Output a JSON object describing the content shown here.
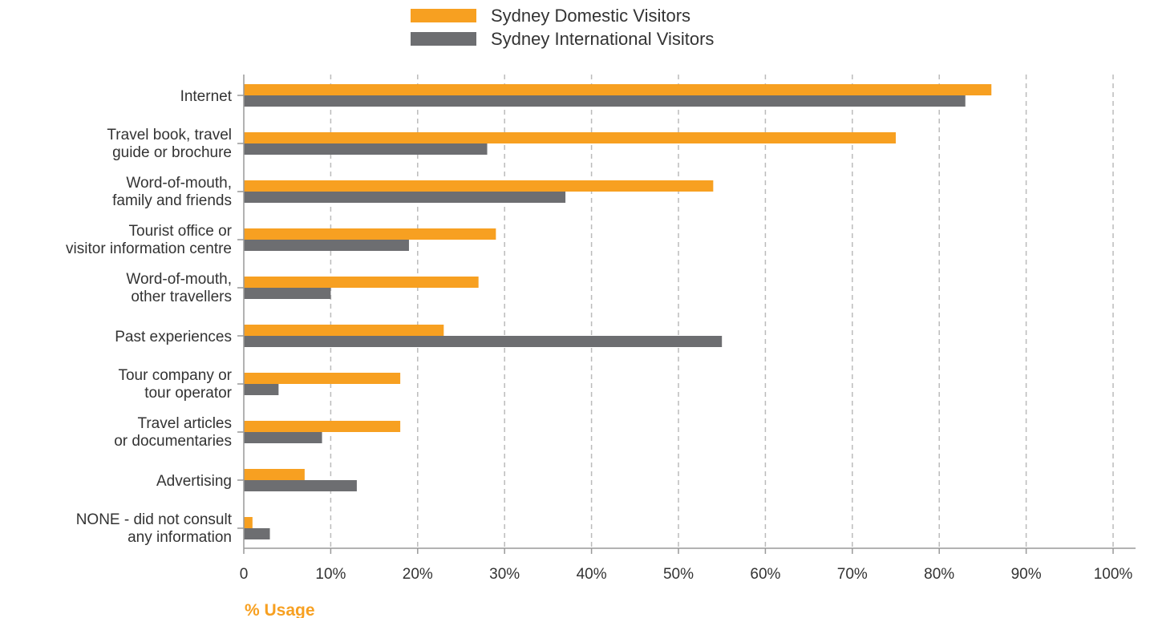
{
  "chart_data": {
    "type": "bar",
    "orientation": "horizontal",
    "title": "",
    "xlabel": "% Usage",
    "ylabel": "",
    "xlim": [
      0,
      100
    ],
    "x_ticks": [
      "0",
      "10%",
      "20%",
      "30%",
      "40%",
      "50%",
      "60%",
      "70%",
      "80%",
      "90%",
      "100%"
    ],
    "grid": "vertical dashed",
    "legend_position": "top-center",
    "categories": [
      [
        "Internet"
      ],
      [
        "Travel book, travel",
        "guide or brochure"
      ],
      [
        "Word-of-mouth,",
        "family and friends"
      ],
      [
        "Tourist office or",
        "visitor information centre"
      ],
      [
        "Word-of-mouth,",
        "other travellers"
      ],
      [
        "Past experiences"
      ],
      [
        "Tour company or",
        "tour operator"
      ],
      [
        "Travel articles",
        "or documentaries"
      ],
      [
        "Advertising"
      ],
      [
        "NONE - did not consult",
        "any information"
      ]
    ],
    "series": [
      {
        "name": "Sydney Domestic Visitors",
        "color": "#F7A021",
        "values": [
          86,
          75,
          54,
          29,
          27,
          23,
          18,
          18,
          7,
          1
        ]
      },
      {
        "name": "Sydney International Visitors",
        "color": "#6D6E71",
        "values": [
          83,
          28,
          37,
          19,
          10,
          55,
          4,
          9,
          13,
          3
        ]
      }
    ],
    "colors": {
      "axis": "#999999",
      "grid": "#BBBBBB",
      "xlabel": "#F7A021"
    }
  }
}
